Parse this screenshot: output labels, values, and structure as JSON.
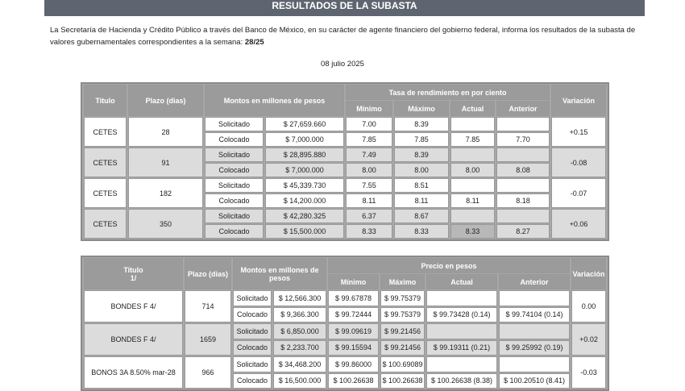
{
  "header": {
    "title": "RESULTADOS DE LA SUBASTA"
  },
  "intro": {
    "text": "La Secretaría de Hacienda y Crédito Público a través del Banco de México, en su carácter de agente financiero del gobierno federal, informa los resultados de la subasta de valores gubernamentales correspondientes a la semana: ",
    "week": "28/25"
  },
  "date": "08 julio 2025",
  "cetes": {
    "headers": {
      "titulo": "Titulo",
      "plazo": "Plazo (dias)",
      "montos": "Montos en millones de pesos",
      "tasa": "Tasa de rendimiento en por ciento",
      "minimo": "Mínimo",
      "maximo": "Máximo",
      "actual": "Actual",
      "anterior": "Anterior",
      "variacion": "Variación"
    },
    "rows": [
      {
        "titulo": "CETES",
        "plazo": "28",
        "variacion": "+0.15",
        "sol": {
          "label": "Solicitado",
          "monto": "$ 27,659.660",
          "min": "7.00",
          "max": "8.39",
          "actual": "",
          "anterior": ""
        },
        "col": {
          "label": "Colocado",
          "monto": "$ 7,000.000",
          "min": "7.85",
          "max": "7.85",
          "actual": "7.85",
          "anterior": "7.70"
        }
      },
      {
        "titulo": "CETES",
        "plazo": "91",
        "variacion": "-0.08",
        "sol": {
          "label": "Solicitado",
          "monto": "$ 28,895.880",
          "min": "7.49",
          "max": "8.39",
          "actual": "",
          "anterior": ""
        },
        "col": {
          "label": "Colocado",
          "monto": "$ 7,000.000",
          "min": "8.00",
          "max": "8.00",
          "actual": "8.00",
          "anterior": "8.08"
        }
      },
      {
        "titulo": "CETES",
        "plazo": "182",
        "variacion": "-0.07",
        "sol": {
          "label": "Solicitado",
          "monto": "$ 45,339.730",
          "min": "7.55",
          "max": "8.51",
          "actual": "",
          "anterior": ""
        },
        "col": {
          "label": "Colocado",
          "monto": "$ 14,200.000",
          "min": "8.11",
          "max": "8.11",
          "actual": "8.11",
          "anterior": "8.18"
        }
      },
      {
        "titulo": "CETES",
        "plazo": "350",
        "variacion": "+0.06",
        "sol": {
          "label": "Solicitado",
          "monto": "$ 42,280.325",
          "min": "6.37",
          "max": "8.67",
          "actual": "",
          "anterior": ""
        },
        "col": {
          "label": "Colocado",
          "monto": "$ 15,500.000",
          "min": "8.33",
          "max": "8.33",
          "actual": "8.33",
          "anterior": "8.27"
        }
      }
    ]
  },
  "bonos": {
    "headers": {
      "titulo": "Titulo",
      "nota": "1/",
      "plazo": "Plazo (dias)",
      "montos": "Montos en millones de pesos",
      "precio": "Precio en pesos",
      "minimo": "Mínimo",
      "maximo": "Máximo",
      "actual": "Actual",
      "anterior": "Anterior",
      "variacion": "Variación"
    },
    "rows": [
      {
        "titulo": "BONDES F 4/",
        "plazo": "714",
        "variacion": "0.00",
        "sol": {
          "label": "Solicitado",
          "monto": "$ 12,566.300",
          "min": "$ 99.67878",
          "max": "$ 99.75379",
          "actual": "",
          "anterior": ""
        },
        "col": {
          "label": "Colocado",
          "monto": "$ 9,366.300",
          "min": "$ 99.72444",
          "max": "$ 99.75379",
          "actual": "$ 99.73428 (0.14)",
          "anterior": "$ 99.74104 (0.14)"
        }
      },
      {
        "titulo": "BONDES F 4/",
        "plazo": "1659",
        "variacion": "+0.02",
        "sol": {
          "label": "Solicitado",
          "monto": "$ 6,850.000",
          "min": "$ 99.09619",
          "max": "$ 99.21456",
          "actual": "",
          "anterior": ""
        },
        "col": {
          "label": "Colocado",
          "monto": "$ 2,233.700",
          "min": "$ 99.15594",
          "max": "$ 99.21456",
          "actual": "$ 99.19311 (0.21)",
          "anterior": "$ 99.25992 (0.19)"
        }
      },
      {
        "titulo": "BONOS 3A 8.50% mar-28",
        "plazo": "966",
        "variacion": "-0.03",
        "sol": {
          "label": "Solicitado",
          "monto": "$ 34,468.200",
          "min": "$ 99.86000",
          "max": "$ 100.69089",
          "actual": "",
          "anterior": ""
        },
        "col": {
          "label": "Colocado",
          "monto": "$ 16,500.000",
          "min": "$ 100.26638",
          "max": "$ 100.26638",
          "actual": "$ 100.26638 (8.38)",
          "anterior": "$ 100.20510 (8.41)"
        }
      }
    ]
  }
}
